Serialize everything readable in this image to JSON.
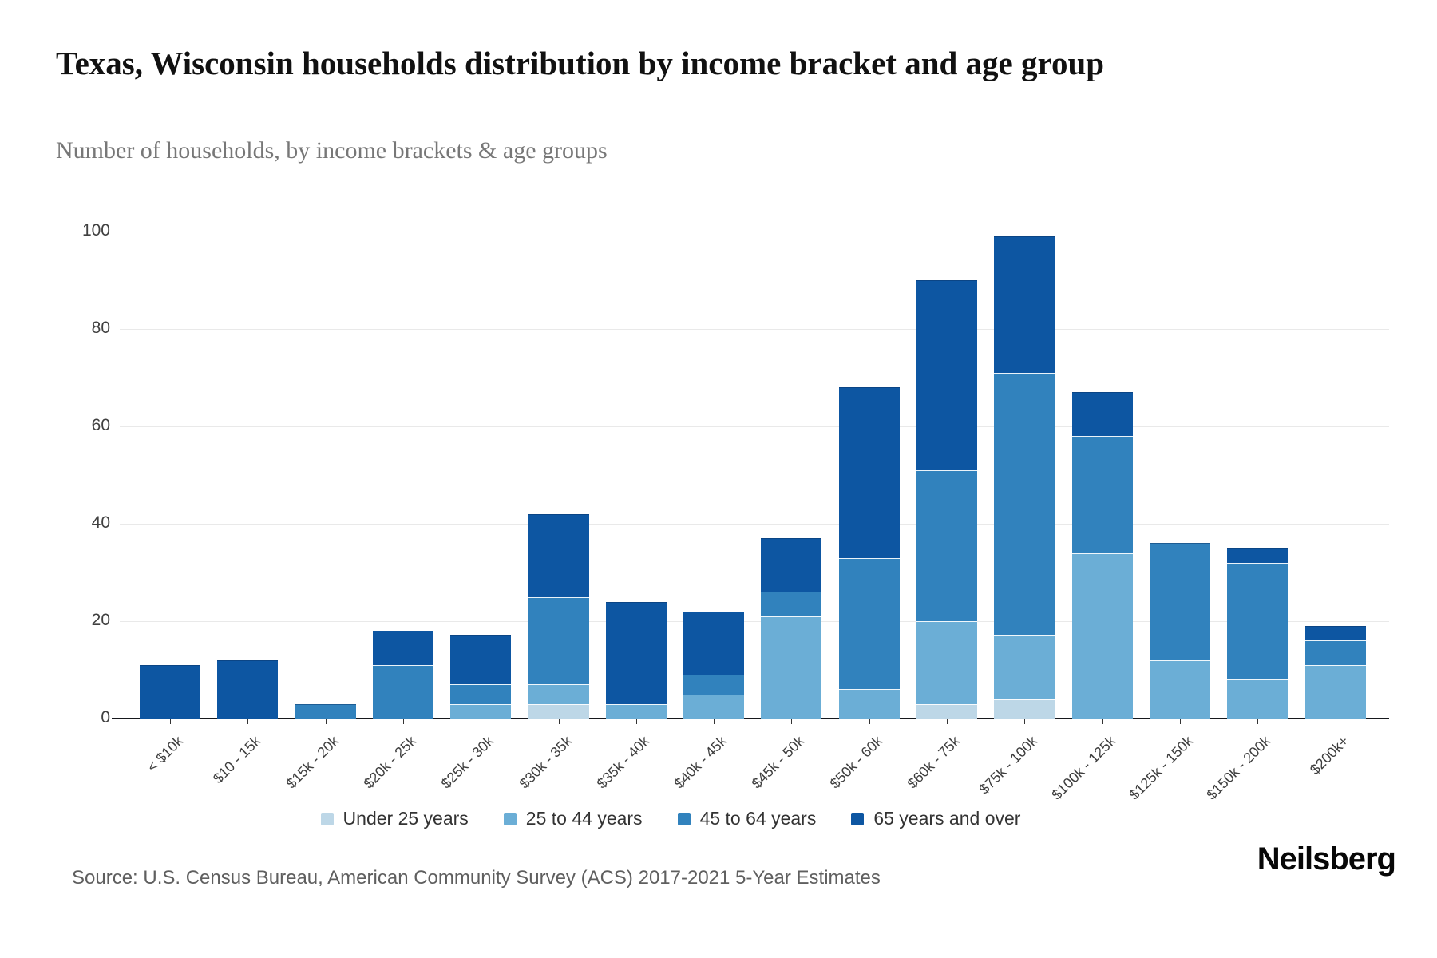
{
  "header": {
    "title": "Texas, Wisconsin households distribution by income bracket and age group",
    "subtitle": "Number of households, by income brackets & age groups"
  },
  "chart_data": {
    "type": "bar",
    "stacked": true,
    "title": "Texas, Wisconsin households distribution by income bracket and age group",
    "subtitle": "Number of households, by income brackets & age groups",
    "categories": [
      "< $10k",
      "$10 - 15k",
      "$15k - 20k",
      "$20k - 25k",
      "$25k - 30k",
      "$30k - 35k",
      "$35k - 40k",
      "$40k - 45k",
      "$45k - 50k",
      "$50k - 60k",
      "$60k - 75k",
      "$75k - 100k",
      "$100k - 125k",
      "$125k - 150k",
      "$150k - 200k",
      "$200k+"
    ],
    "series": [
      {
        "name": "Under 25 years",
        "color": "#bdd7e7",
        "values": [
          0,
          0,
          0,
          0,
          0,
          3,
          0,
          0,
          0,
          0,
          3,
          4,
          0,
          0,
          0,
          0
        ]
      },
      {
        "name": "25 to 44 years",
        "color": "#6baed6",
        "values": [
          0,
          0,
          0,
          0,
          3,
          4,
          3,
          5,
          21,
          6,
          17,
          13,
          34,
          12,
          8,
          11
        ]
      },
      {
        "name": "45 to 64 years",
        "color": "#3182bd",
        "values": [
          0,
          0,
          3,
          11,
          4,
          18,
          0,
          4,
          5,
          27,
          31,
          54,
          24,
          24,
          24,
          5
        ]
      },
      {
        "name": "65 years and over",
        "color": "#0d56a2",
        "values": [
          11,
          12,
          0,
          7,
          10,
          17,
          21,
          13,
          11,
          35,
          39,
          28,
          9,
          0,
          3,
          3
        ]
      }
    ],
    "totals": [
      11,
      12,
      3,
      18,
      17,
      42,
      24,
      22,
      37,
      68,
      90,
      99,
      67,
      36,
      35,
      19
    ],
    "ylim": [
      0,
      100
    ],
    "yticks": [
      0,
      20,
      40,
      60,
      80,
      100
    ],
    "grid": "horizontal",
    "legend_position": "bottom"
  },
  "footer": {
    "source": "Source: U.S. Census Bureau, American Community Survey (ACS) 2017-2021 5-Year Estimates",
    "logo": "Neilsberg"
  }
}
